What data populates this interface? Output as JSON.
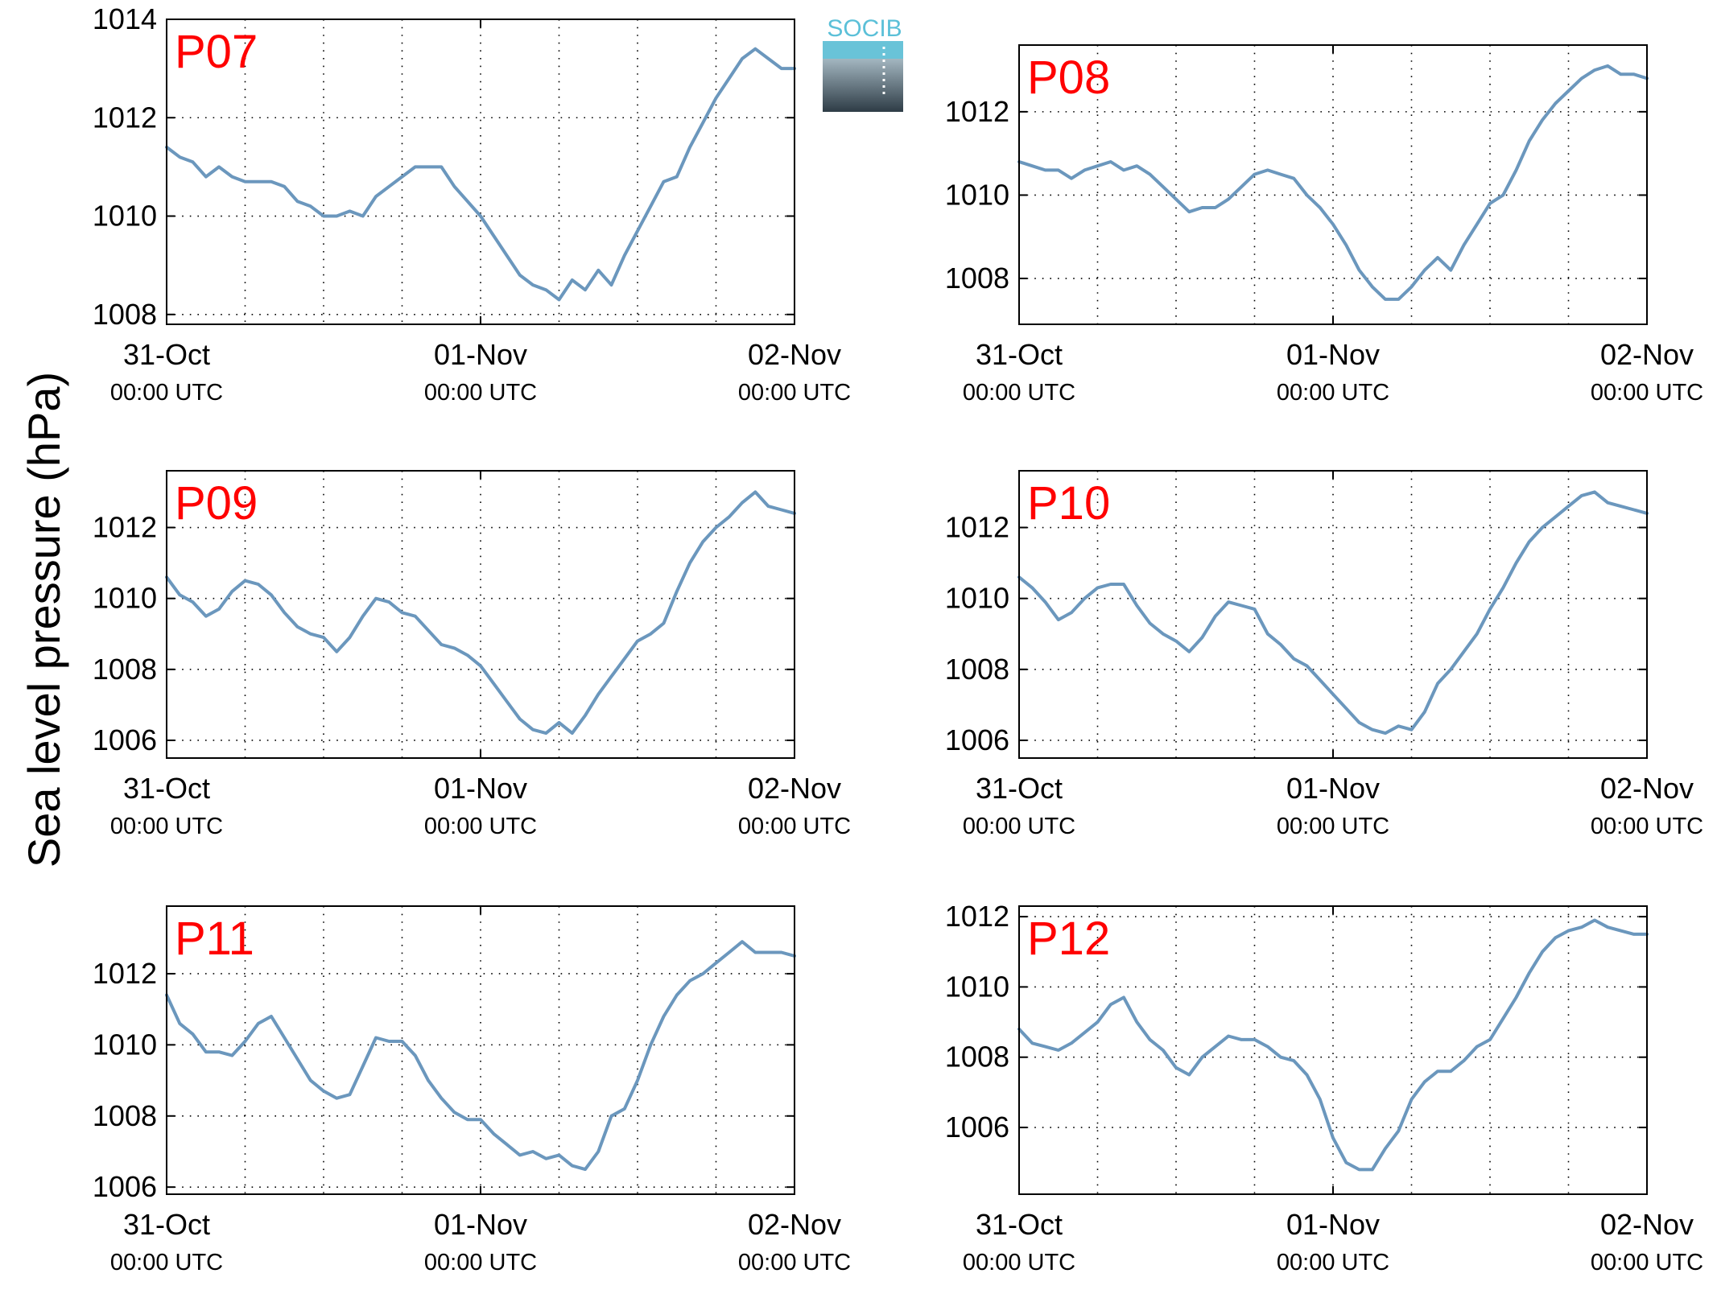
{
  "figure": {
    "ylabel": "Sea level pressure (hPa)",
    "logo_text": "SOCIB",
    "colors": {
      "line": "#6b97bd",
      "panel_label": "#ff0000",
      "axis": "#000000",
      "grid": "#000000"
    }
  },
  "chart_data": [
    {
      "type": "line",
      "panel_label": "P07",
      "grid": true,
      "xlim": [
        0,
        48
      ],
      "ylim": [
        1007.8,
        1014
      ],
      "yticks": [
        1008,
        1010,
        1012,
        1014
      ],
      "xticks": [
        0,
        24,
        48
      ],
      "xtick_dates": [
        "31-Oct",
        "01-Nov",
        "02-Nov"
      ],
      "xtick_times": [
        "00:00 UTC",
        "00:00 UTC",
        "00:00 UTC"
      ],
      "series": [
        {
          "x": [
            0,
            1,
            2,
            3,
            4,
            5,
            6,
            7,
            8,
            9,
            10,
            11,
            12,
            13,
            14,
            15,
            16,
            17,
            18,
            19,
            20,
            21,
            22,
            23,
            24,
            25,
            26,
            27,
            28,
            29,
            30,
            31,
            32,
            33,
            34,
            35,
            36,
            37,
            38,
            39,
            40,
            41,
            42,
            43,
            44,
            45,
            46,
            47,
            48
          ],
          "values": [
            1011.4,
            1011.2,
            1011.1,
            1010.8,
            1011.0,
            1010.8,
            1010.7,
            1010.7,
            1010.7,
            1010.6,
            1010.3,
            1010.2,
            1010.0,
            1010.0,
            1010.1,
            1010.0,
            1010.4,
            1010.6,
            1010.8,
            1011.0,
            1011.0,
            1011.0,
            1010.6,
            1010.3,
            1010.0,
            1009.6,
            1009.2,
            1008.8,
            1008.6,
            1008.5,
            1008.3,
            1008.7,
            1008.5,
            1008.9,
            1008.6,
            1009.2,
            1009.7,
            1010.2,
            1010.7,
            1010.8,
            1011.4,
            1011.9,
            1012.4,
            1012.8,
            1013.2,
            1013.4,
            1013.2,
            1013.0,
            1013.0
          ]
        }
      ]
    },
    {
      "type": "line",
      "panel_label": "P08",
      "grid": true,
      "xlim": [
        0,
        48
      ],
      "ylim": [
        1006.9,
        1013.6
      ],
      "yticks": [
        1008,
        1010,
        1012
      ],
      "xticks": [
        0,
        24,
        48
      ],
      "xtick_dates": [
        "31-Oct",
        "01-Nov",
        "02-Nov"
      ],
      "xtick_times": [
        "00:00 UTC",
        "00:00 UTC",
        "00:00 UTC"
      ],
      "series": [
        {
          "x": [
            0,
            1,
            2,
            3,
            4,
            5,
            6,
            7,
            8,
            9,
            10,
            11,
            12,
            13,
            14,
            15,
            16,
            17,
            18,
            19,
            20,
            21,
            22,
            23,
            24,
            25,
            26,
            27,
            28,
            29,
            30,
            31,
            32,
            33,
            34,
            35,
            36,
            37,
            38,
            39,
            40,
            41,
            42,
            43,
            44,
            45,
            46,
            47,
            48
          ],
          "values": [
            1010.8,
            1010.7,
            1010.6,
            1010.6,
            1010.4,
            1010.6,
            1010.7,
            1010.8,
            1010.6,
            1010.7,
            1010.5,
            1010.2,
            1009.9,
            1009.6,
            1009.7,
            1009.7,
            1009.9,
            1010.2,
            1010.5,
            1010.6,
            1010.5,
            1010.4,
            1010.0,
            1009.7,
            1009.3,
            1008.8,
            1008.2,
            1007.8,
            1007.5,
            1007.5,
            1007.8,
            1008.2,
            1008.5,
            1008.2,
            1008.8,
            1009.3,
            1009.8,
            1010.0,
            1010.6,
            1011.3,
            1011.8,
            1012.2,
            1012.5,
            1012.8,
            1013.0,
            1013.1,
            1012.9,
            1012.9,
            1012.8
          ]
        }
      ]
    },
    {
      "type": "line",
      "panel_label": "P09",
      "grid": true,
      "xlim": [
        0,
        48
      ],
      "ylim": [
        1005.5,
        1013.6
      ],
      "yticks": [
        1006,
        1008,
        1010,
        1012
      ],
      "xticks": [
        0,
        24,
        48
      ],
      "xtick_dates": [
        "31-Oct",
        "01-Nov",
        "02-Nov"
      ],
      "xtick_times": [
        "00:00 UTC",
        "00:00 UTC",
        "00:00 UTC"
      ],
      "series": [
        {
          "x": [
            0,
            1,
            2,
            3,
            4,
            5,
            6,
            7,
            8,
            9,
            10,
            11,
            12,
            13,
            14,
            15,
            16,
            17,
            18,
            19,
            20,
            21,
            22,
            23,
            24,
            25,
            26,
            27,
            28,
            29,
            30,
            31,
            32,
            33,
            34,
            35,
            36,
            37,
            38,
            39,
            40,
            41,
            42,
            43,
            44,
            45,
            46,
            47,
            48
          ],
          "values": [
            1010.6,
            1010.1,
            1009.9,
            1009.5,
            1009.7,
            1010.2,
            1010.5,
            1010.4,
            1010.1,
            1009.6,
            1009.2,
            1009.0,
            1008.9,
            1008.5,
            1008.9,
            1009.5,
            1010.0,
            1009.9,
            1009.6,
            1009.5,
            1009.1,
            1008.7,
            1008.6,
            1008.4,
            1008.1,
            1007.6,
            1007.1,
            1006.6,
            1006.3,
            1006.2,
            1006.5,
            1006.2,
            1006.7,
            1007.3,
            1007.8,
            1008.3,
            1008.8,
            1009.0,
            1009.3,
            1010.2,
            1011.0,
            1011.6,
            1012.0,
            1012.3,
            1012.7,
            1013.0,
            1012.6,
            1012.5,
            1012.4
          ]
        }
      ]
    },
    {
      "type": "line",
      "panel_label": "P10",
      "grid": true,
      "xlim": [
        0,
        48
      ],
      "ylim": [
        1005.5,
        1013.6
      ],
      "yticks": [
        1006,
        1008,
        1010,
        1012
      ],
      "xticks": [
        0,
        24,
        48
      ],
      "xtick_dates": [
        "31-Oct",
        "01-Nov",
        "02-Nov"
      ],
      "xtick_times": [
        "00:00 UTC",
        "00:00 UTC",
        "00:00 UTC"
      ],
      "series": [
        {
          "x": [
            0,
            1,
            2,
            3,
            4,
            5,
            6,
            7,
            8,
            9,
            10,
            11,
            12,
            13,
            14,
            15,
            16,
            17,
            18,
            19,
            20,
            21,
            22,
            23,
            24,
            25,
            26,
            27,
            28,
            29,
            30,
            31,
            32,
            33,
            34,
            35,
            36,
            37,
            38,
            39,
            40,
            41,
            42,
            43,
            44,
            45,
            46,
            47,
            48
          ],
          "values": [
            1010.6,
            1010.3,
            1009.9,
            1009.4,
            1009.6,
            1010.0,
            1010.3,
            1010.4,
            1010.4,
            1009.8,
            1009.3,
            1009.0,
            1008.8,
            1008.5,
            1008.9,
            1009.5,
            1009.9,
            1009.8,
            1009.7,
            1009.0,
            1008.7,
            1008.3,
            1008.1,
            1007.7,
            1007.3,
            1006.9,
            1006.5,
            1006.3,
            1006.2,
            1006.4,
            1006.3,
            1006.8,
            1007.6,
            1008.0,
            1008.5,
            1009.0,
            1009.7,
            1010.3,
            1011.0,
            1011.6,
            1012.0,
            1012.3,
            1012.6,
            1012.9,
            1013.0,
            1012.7,
            1012.6,
            1012.5,
            1012.4
          ]
        }
      ]
    },
    {
      "type": "line",
      "panel_label": "P11",
      "grid": true,
      "xlim": [
        0,
        48
      ],
      "ylim": [
        1005.8,
        1013.9
      ],
      "yticks": [
        1006,
        1008,
        1010,
        1012
      ],
      "xticks": [
        0,
        24,
        48
      ],
      "xtick_dates": [
        "31-Oct",
        "01-Nov",
        "02-Nov"
      ],
      "xtick_times": [
        "00:00 UTC",
        "00:00 UTC",
        "00:00 UTC"
      ],
      "series": [
        {
          "x": [
            0,
            1,
            2,
            3,
            4,
            5,
            6,
            7,
            8,
            9,
            10,
            11,
            12,
            13,
            14,
            15,
            16,
            17,
            18,
            19,
            20,
            21,
            22,
            23,
            24,
            25,
            26,
            27,
            28,
            29,
            30,
            31,
            32,
            33,
            34,
            35,
            36,
            37,
            38,
            39,
            40,
            41,
            42,
            43,
            44,
            45,
            46,
            47,
            48
          ],
          "values": [
            1011.4,
            1010.6,
            1010.3,
            1009.8,
            1009.8,
            1009.7,
            1010.1,
            1010.6,
            1010.8,
            1010.2,
            1009.6,
            1009.0,
            1008.7,
            1008.5,
            1008.6,
            1009.4,
            1010.2,
            1010.1,
            1010.1,
            1009.7,
            1009.0,
            1008.5,
            1008.1,
            1007.9,
            1007.9,
            1007.5,
            1007.2,
            1006.9,
            1007.0,
            1006.8,
            1006.9,
            1006.6,
            1006.5,
            1007.0,
            1008.0,
            1008.2,
            1009.0,
            1010.0,
            1010.8,
            1011.4,
            1011.8,
            1012.0,
            1012.3,
            1012.6,
            1012.9,
            1012.6,
            1012.6,
            1012.6,
            1012.5
          ]
        }
      ]
    },
    {
      "type": "line",
      "panel_label": "P12",
      "grid": true,
      "xlim": [
        0,
        48
      ],
      "ylim": [
        1004.1,
        1012.3
      ],
      "yticks": [
        1006,
        1008,
        1010,
        1012
      ],
      "xticks": [
        0,
        24,
        48
      ],
      "xtick_dates": [
        "31-Oct",
        "01-Nov",
        "02-Nov"
      ],
      "xtick_times": [
        "00:00 UTC",
        "00:00 UTC",
        "00:00 UTC"
      ],
      "series": [
        {
          "x": [
            0,
            1,
            2,
            3,
            4,
            5,
            6,
            7,
            8,
            9,
            10,
            11,
            12,
            13,
            14,
            15,
            16,
            17,
            18,
            19,
            20,
            21,
            22,
            23,
            24,
            25,
            26,
            27,
            28,
            29,
            30,
            31,
            32,
            33,
            34,
            35,
            36,
            37,
            38,
            39,
            40,
            41,
            42,
            43,
            44,
            45,
            46,
            47,
            48
          ],
          "values": [
            1008.8,
            1008.4,
            1008.3,
            1008.2,
            1008.4,
            1008.7,
            1009.0,
            1009.5,
            1009.7,
            1009.0,
            1008.5,
            1008.2,
            1007.7,
            1007.5,
            1008.0,
            1008.3,
            1008.6,
            1008.5,
            1008.5,
            1008.3,
            1008.0,
            1007.9,
            1007.5,
            1006.8,
            1005.7,
            1005.0,
            1004.8,
            1004.8,
            1005.4,
            1005.9,
            1006.8,
            1007.3,
            1007.6,
            1007.6,
            1007.9,
            1008.3,
            1008.5,
            1009.1,
            1009.7,
            1010.4,
            1011.0,
            1011.4,
            1011.6,
            1011.7,
            1011.9,
            1011.7,
            1011.6,
            1011.5,
            1011.5
          ]
        }
      ]
    }
  ]
}
